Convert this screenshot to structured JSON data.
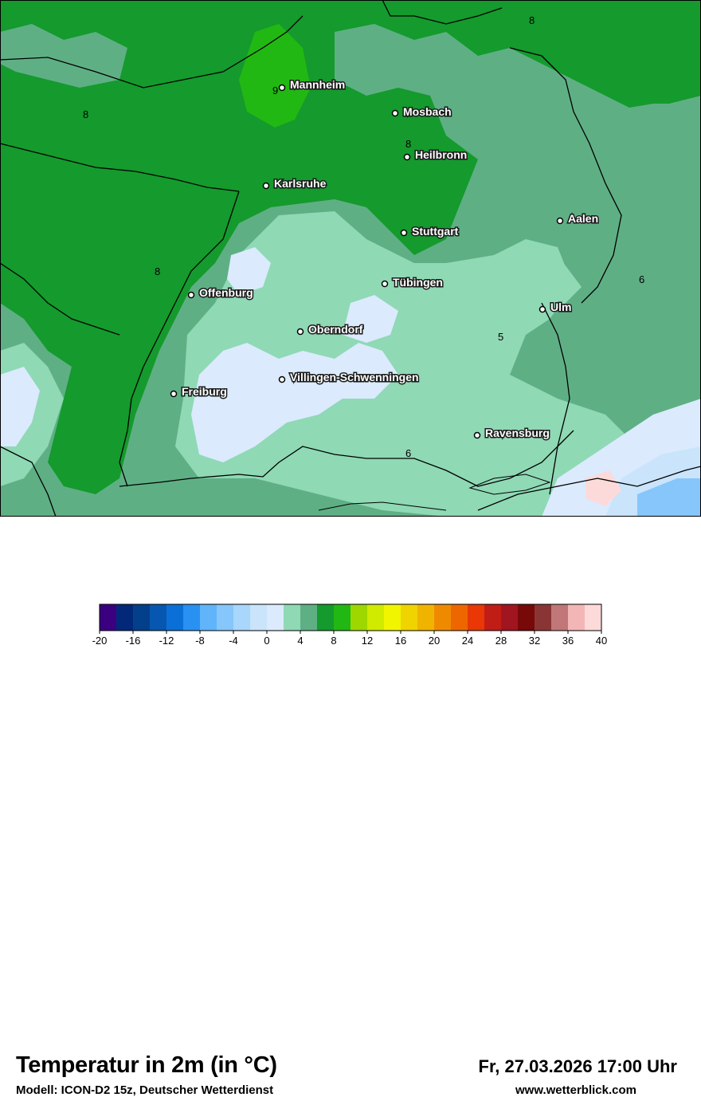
{
  "header": {
    "title": "Temperatur in 2m (in °C)",
    "model": "Modell: ICON-D2 15z, Deutscher Wetterdienst",
    "datetime": "Fr, 27.03.2026 17:00 Uhr",
    "website": "www.wetterblick.com"
  },
  "map": {
    "cities": [
      {
        "name": "Mannheim"
      },
      {
        "name": "Mosbach"
      },
      {
        "name": "Heilbronn"
      },
      {
        "name": "Karlsruhe"
      },
      {
        "name": "Aalen"
      },
      {
        "name": "Stuttgart"
      },
      {
        "name": "Tübingen"
      },
      {
        "name": "Offenburg"
      },
      {
        "name": "Ulm"
      },
      {
        "name": "Oberndorf"
      },
      {
        "name": "Villingen-Schwenningen"
      },
      {
        "name": "Freiburg"
      },
      {
        "name": "Ravensburg"
      }
    ],
    "contour_labels": [
      "8",
      "9",
      "8",
      "8",
      "8",
      "6",
      "5",
      "6"
    ]
  },
  "legend": {
    "ticks": [
      "-20",
      "-16",
      "-12",
      "-8",
      "-4",
      "0",
      "4",
      "8",
      "12",
      "16",
      "20",
      "24",
      "28",
      "32",
      "36",
      "40"
    ],
    "colors": [
      "#3b007f",
      "#02287a",
      "#043f8c",
      "#0757b0",
      "#0a70d8",
      "#2891f1",
      "#60b4fa",
      "#86c6fa",
      "#a9d6fb",
      "#c9e4fb",
      "#dbeafd",
      "#8fd9b5",
      "#5faf85",
      "#149a2d",
      "#22b813",
      "#9ed700",
      "#d0ea00",
      "#f1f500",
      "#f0d400",
      "#f0b400",
      "#ef8a00",
      "#ee6600",
      "#e93706",
      "#c01d16",
      "#a01520",
      "#780909",
      "#8a3535",
      "#c17777",
      "#f3b6b6",
      "#fddada"
    ]
  }
}
